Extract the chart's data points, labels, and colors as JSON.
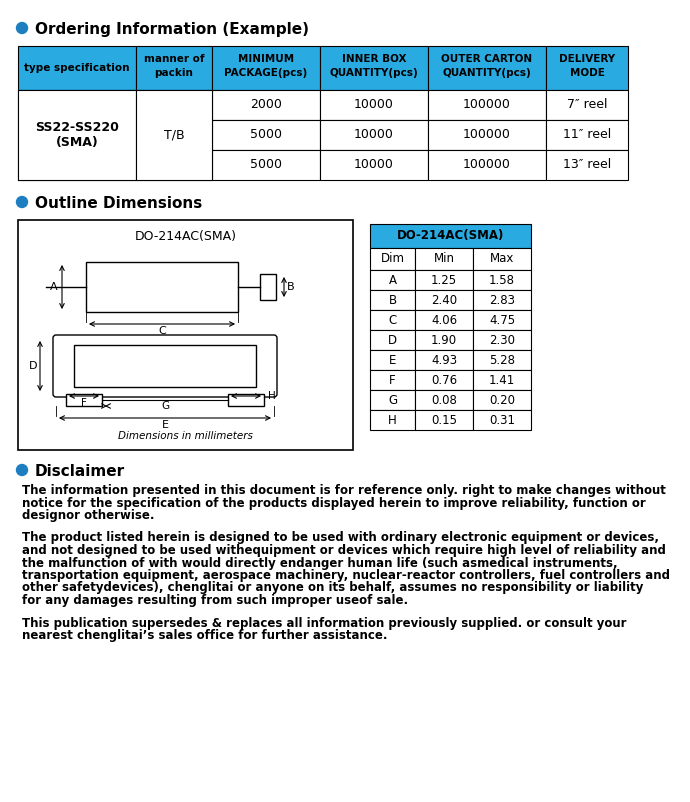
{
  "ordering_title": "Ordering Information (Example)",
  "ordering_headers": [
    "type specification",
    "manner of\npackin",
    "MINIMUM\nPACKAGE(pcs)",
    "INNER BOX\nQUANTITY(pcs)",
    "OUTER CARTON\nQUANTITY(pcs)",
    "DELIVERY\nMODE"
  ],
  "ordering_rows": [
    [
      "SS22-SS220\n(SMA)",
      "T/B",
      "2000",
      "10000",
      "100000",
      "7″ reel"
    ],
    [
      "",
      "",
      "5000",
      "10000",
      "100000",
      "11″ reel"
    ],
    [
      "",
      "",
      "5000",
      "10000",
      "100000",
      "13″ reel"
    ]
  ],
  "outline_title": "Outline Dimensions",
  "dim_table_title": "DO-214AC(SMA)",
  "dim_headers": [
    "Dim",
    "Min",
    "Max"
  ],
  "dim_rows": [
    [
      "A",
      "1.25",
      "1.58"
    ],
    [
      "B",
      "2.40",
      "2.83"
    ],
    [
      "C",
      "4.06",
      "4.75"
    ],
    [
      "D",
      "1.90",
      "2.30"
    ],
    [
      "E",
      "4.93",
      "5.28"
    ],
    [
      "F",
      "0.76",
      "1.41"
    ],
    [
      "G",
      "0.08",
      "0.20"
    ],
    [
      "H",
      "0.15",
      "0.31"
    ]
  ],
  "disclaimer_title": "Disclaimer",
  "disclaimer_p1": "The information presented in this document is for reference only. right to make changes without notice for the specification of the products displayed herein to improve reliability, function or designor otherwise.",
  "disclaimer_p2": "The product listed herein is designed to be used with ordinary electronic equipment or devices, and not designed to be used withequipment or devices which require high level of reliability and the malfunction of with would directly endanger human life (such asmedical instruments, transportation equipment, aerospace machinery, nuclear-reactor controllers, fuel controllers and other safetydevices), chenglitai or anyone on its behalf, assumes no responsibility or liability for any damages resulting from such improper useof sale.",
  "disclaimer_p3": "This publication supersedes & replaces all information previously supplied. or consult your nearest chenglitai’s sales office for further assistance.",
  "header_bg": "#29ABE2",
  "bullet_color": "#1E7FC0",
  "text_color": "#000000",
  "bg_color": "#FFFFFF"
}
